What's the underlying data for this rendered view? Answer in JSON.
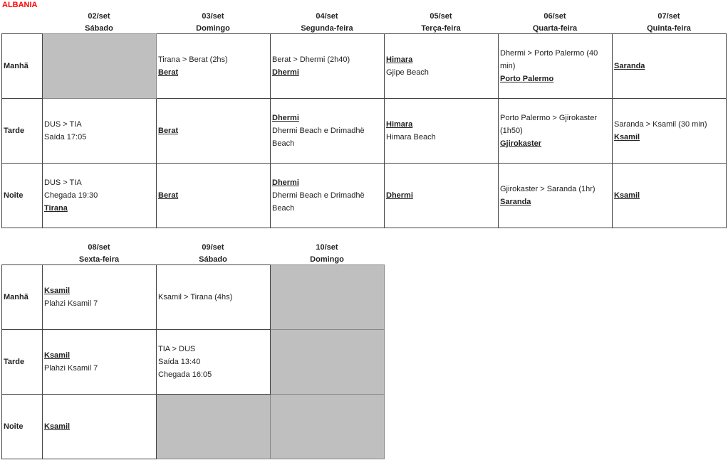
{
  "title": "ALBANIA",
  "period_labels": [
    "Manhã",
    "Tarde",
    "Noite"
  ],
  "tables": [
    {
      "days": [
        {
          "date": "02/set",
          "weekday": "Sábado",
          "cells": [
            null,
            [
              {
                "text": "DUS > TIA",
                "bold": false
              },
              {
                "text": "Saída 17:05",
                "bold": false
              }
            ],
            [
              {
                "text": "DUS > TIA",
                "bold": false
              },
              {
                "text": "Chegada 19:30",
                "bold": false
              },
              {
                "text": "Tirana",
                "bold": true
              }
            ]
          ]
        },
        {
          "date": "03/set",
          "weekday": "Domingo",
          "cells": [
            [
              {
                "text": "Tirana > Berat (2hs)",
                "bold": false
              },
              {
                "text": "Berat",
                "bold": true
              }
            ],
            [
              {
                "text": "Berat",
                "bold": true
              }
            ],
            [
              {
                "text": "Berat",
                "bold": true
              }
            ]
          ]
        },
        {
          "date": "04/set",
          "weekday": "Segunda-feira",
          "cells": [
            [
              {
                "text": "Berat > Dhermi (2h40)",
                "bold": false
              },
              {
                "text": "Dhermi",
                "bold": true
              }
            ],
            [
              {
                "text": "Dhermi",
                "bold": true
              },
              {
                "text": "Dhermi Beach e Drimadhë Beach",
                "bold": false
              }
            ],
            [
              {
                "text": "Dhermi",
                "bold": true
              },
              {
                "text": "Dhermi Beach e Drimadhë Beach",
                "bold": false
              }
            ]
          ]
        },
        {
          "date": "05/set",
          "weekday": "Terça-feira",
          "cells": [
            [
              {
                "text": "Himara",
                "bold": true
              },
              {
                "text": "Gjipe Beach",
                "bold": false
              }
            ],
            [
              {
                "text": "Himara",
                "bold": true
              },
              {
                "text": "Himara Beach",
                "bold": false
              }
            ],
            [
              {
                "text": "Dhermi",
                "bold": true
              }
            ]
          ]
        },
        {
          "date": "06/set",
          "weekday": "Quarta-feira",
          "cells": [
            [
              {
                "text": "Dhermi > Porto Palermo (40 min)",
                "bold": false
              },
              {
                "text": "Porto Palermo",
                "bold": true
              }
            ],
            [
              {
                "text": "Porto Palermo > Gjirokaster (1h50)",
                "bold": false
              },
              {
                "text": "Gjirokaster",
                "bold": true
              }
            ],
            [
              {
                "text": "Gjirokaster > Saranda (1hr)",
                "bold": false
              },
              {
                "text": "Saranda",
                "bold": true
              }
            ]
          ]
        },
        {
          "date": "07/set",
          "weekday": "Quinta-feira",
          "cells": [
            [
              {
                "text": "Saranda",
                "bold": true
              }
            ],
            [
              {
                "text": "Saranda > Ksamil (30 min)",
                "bold": false
              },
              {
                "text": "Ksamil",
                "bold": true
              }
            ],
            [
              {
                "text": "Ksamil",
                "bold": true
              }
            ]
          ]
        }
      ]
    },
    {
      "days": [
        {
          "date": "08/set",
          "weekday": "Sexta-feira",
          "cells": [
            [
              {
                "text": "Ksamil",
                "bold": true
              },
              {
                "text": "Plahzi Ksamil 7",
                "bold": false
              }
            ],
            [
              {
                "text": "Ksamil",
                "bold": true
              },
              {
                "text": "Plahzi Ksamil 7",
                "bold": false
              }
            ],
            [
              {
                "text": "Ksamil",
                "bold": true
              }
            ]
          ]
        },
        {
          "date": "09/set",
          "weekday": "Sábado",
          "cells": [
            [
              {
                "text": "Ksamil > Tirana (4hs)",
                "bold": false
              }
            ],
            [
              {
                "text": "TIA > DUS",
                "bold": false
              },
              {
                "text": "Saída 13:40",
                "bold": false
              },
              {
                "text": "Chegada 16:05",
                "bold": false
              }
            ],
            null
          ]
        },
        {
          "date": "10/set",
          "weekday": "Domingo",
          "cells": [
            null,
            null,
            null
          ]
        }
      ]
    }
  ],
  "colors": {
    "title": "#ff0000",
    "empty_cell": "#bfbfbf"
  }
}
